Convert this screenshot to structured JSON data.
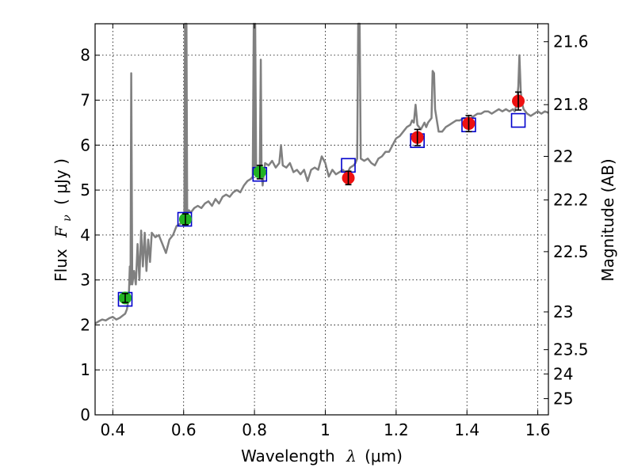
{
  "chart_data": {
    "type": "scatter",
    "xlabel": {
      "text": "Wavelength",
      "symbol": "λ",
      "unit": "(μm)"
    },
    "ylabel": {
      "text": "Flux",
      "symbol": "F",
      "subscript": "ν",
      "unit": "( μJy )"
    },
    "y2label": "Magnitude (AB)",
    "xlim": [
      0.35,
      1.63
    ],
    "ylim": [
      0,
      8.7
    ],
    "grid": true,
    "x_ticks": [
      0.4,
      0.6,
      0.8,
      1.0,
      1.2,
      1.4,
      1.6
    ],
    "x_tick_labels": [
      "0.4",
      "0.6",
      "0.8",
      "1",
      "1.2",
      "1.4",
      "1.6"
    ],
    "y_ticks": [
      0,
      1,
      2,
      3,
      4,
      5,
      6,
      7,
      8
    ],
    "y_tick_labels": [
      "0",
      "1",
      "2",
      "3",
      "4",
      "5",
      "6",
      "7",
      "8"
    ],
    "y2_ticks": [
      {
        "label": "21.6",
        "flux": 8.3
      },
      {
        "label": "21.8",
        "flux": 6.9
      },
      {
        "label": "22",
        "flux": 5.75
      },
      {
        "label": "22.2",
        "flux": 4.78
      },
      {
        "label": "22.5",
        "flux": 3.63
      },
      {
        "label": "23",
        "flux": 2.29
      },
      {
        "label": "23.5",
        "flux": 1.45
      },
      {
        "label": "24",
        "flux": 0.91
      },
      {
        "label": "25",
        "flux": 0.36
      }
    ],
    "colors": {
      "spectrum": "#808080",
      "green": "#22b222",
      "red": "#ee1111",
      "model": "#0000cc"
    },
    "spectrum": [
      [
        0.35,
        2.03
      ],
      [
        0.36,
        2.08
      ],
      [
        0.37,
        2.12
      ],
      [
        0.38,
        2.1
      ],
      [
        0.39,
        2.15
      ],
      [
        0.4,
        2.18
      ],
      [
        0.41,
        2.12
      ],
      [
        0.42,
        2.16
      ],
      [
        0.43,
        2.22
      ],
      [
        0.435,
        2.25
      ],
      [
        0.44,
        2.35
      ],
      [
        0.445,
        2.6
      ],
      [
        0.448,
        3.3
      ],
      [
        0.45,
        2.9
      ],
      [
        0.452,
        7.6
      ],
      [
        0.455,
        2.9
      ],
      [
        0.46,
        3.2
      ],
      [
        0.465,
        2.9
      ],
      [
        0.47,
        3.8
      ],
      [
        0.475,
        3.0
      ],
      [
        0.48,
        4.1
      ],
      [
        0.485,
        3.3
      ],
      [
        0.49,
        4.05
      ],
      [
        0.495,
        3.2
      ],
      [
        0.5,
        3.9
      ],
      [
        0.505,
        3.4
      ],
      [
        0.51,
        4.05
      ],
      [
        0.52,
        3.95
      ],
      [
        0.53,
        4.0
      ],
      [
        0.54,
        3.8
      ],
      [
        0.55,
        3.6
      ],
      [
        0.56,
        3.9
      ],
      [
        0.57,
        4.0
      ],
      [
        0.58,
        4.2
      ],
      [
        0.59,
        4.25
      ],
      [
        0.6,
        4.3
      ],
      [
        0.602,
        4.4
      ],
      [
        0.604,
        8.7
      ],
      [
        0.606,
        4.5
      ],
      [
        0.608,
        8.7
      ],
      [
        0.61,
        4.5
      ],
      [
        0.615,
        4.55
      ],
      [
        0.62,
        4.5
      ],
      [
        0.63,
        4.6
      ],
      [
        0.64,
        4.65
      ],
      [
        0.65,
        4.6
      ],
      [
        0.66,
        4.7
      ],
      [
        0.67,
        4.75
      ],
      [
        0.68,
        4.65
      ],
      [
        0.69,
        4.8
      ],
      [
        0.7,
        4.7
      ],
      [
        0.71,
        4.85
      ],
      [
        0.72,
        4.9
      ],
      [
        0.73,
        4.85
      ],
      [
        0.74,
        4.95
      ],
      [
        0.75,
        5.0
      ],
      [
        0.76,
        4.95
      ],
      [
        0.77,
        5.1
      ],
      [
        0.78,
        5.2
      ],
      [
        0.79,
        5.25
      ],
      [
        0.795,
        5.3
      ],
      [
        0.798,
        8.7
      ],
      [
        0.8,
        5.35
      ],
      [
        0.802,
        8.7
      ],
      [
        0.805,
        5.3
      ],
      [
        0.81,
        5.35
      ],
      [
        0.815,
        5.45
      ],
      [
        0.818,
        7.9
      ],
      [
        0.82,
        5.5
      ],
      [
        0.823,
        5.1
      ],
      [
        0.83,
        5.6
      ],
      [
        0.84,
        5.55
      ],
      [
        0.85,
        5.65
      ],
      [
        0.86,
        5.5
      ],
      [
        0.87,
        5.6
      ],
      [
        0.875,
        6.0
      ],
      [
        0.88,
        5.55
      ],
      [
        0.89,
        5.5
      ],
      [
        0.9,
        5.6
      ],
      [
        0.91,
        5.4
      ],
      [
        0.92,
        5.45
      ],
      [
        0.93,
        5.35
      ],
      [
        0.94,
        5.45
      ],
      [
        0.95,
        5.2
      ],
      [
        0.96,
        5.45
      ],
      [
        0.97,
        5.5
      ],
      [
        0.98,
        5.45
      ],
      [
        0.99,
        5.75
      ],
      [
        1.0,
        5.6
      ],
      [
        1.01,
        5.3
      ],
      [
        1.02,
        5.45
      ],
      [
        1.03,
        5.35
      ],
      [
        1.04,
        5.4
      ],
      [
        1.05,
        5.45
      ],
      [
        1.06,
        5.35
      ],
      [
        1.07,
        5.5
      ],
      [
        1.08,
        5.55
      ],
      [
        1.085,
        5.6
      ],
      [
        1.09,
        5.7
      ],
      [
        1.093,
        8.7
      ],
      [
        1.097,
        8.7
      ],
      [
        1.1,
        5.7
      ],
      [
        1.11,
        5.65
      ],
      [
        1.12,
        5.7
      ],
      [
        1.13,
        5.6
      ],
      [
        1.14,
        5.55
      ],
      [
        1.15,
        5.7
      ],
      [
        1.16,
        5.75
      ],
      [
        1.17,
        5.85
      ],
      [
        1.18,
        5.85
      ],
      [
        1.19,
        6.0
      ],
      [
        1.2,
        6.15
      ],
      [
        1.21,
        6.2
      ],
      [
        1.22,
        6.3
      ],
      [
        1.23,
        6.4
      ],
      [
        1.24,
        6.45
      ],
      [
        1.245,
        6.55
      ],
      [
        1.25,
        6.5
      ],
      [
        1.255,
        6.9
      ],
      [
        1.26,
        6.45
      ],
      [
        1.27,
        6.35
      ],
      [
        1.28,
        6.5
      ],
      [
        1.285,
        6.4
      ],
      [
        1.29,
        6.5
      ],
      [
        1.3,
        6.6
      ],
      [
        1.303,
        7.65
      ],
      [
        1.307,
        7.6
      ],
      [
        1.31,
        6.8
      ],
      [
        1.32,
        6.3
      ],
      [
        1.33,
        6.3
      ],
      [
        1.34,
        6.4
      ],
      [
        1.35,
        6.45
      ],
      [
        1.36,
        6.5
      ],
      [
        1.37,
        6.55
      ],
      [
        1.38,
        6.55
      ],
      [
        1.39,
        6.6
      ],
      [
        1.4,
        6.6
      ],
      [
        1.41,
        6.6
      ],
      [
        1.42,
        6.65
      ],
      [
        1.43,
        6.7
      ],
      [
        1.44,
        6.7
      ],
      [
        1.45,
        6.75
      ],
      [
        1.46,
        6.75
      ],
      [
        1.47,
        6.7
      ],
      [
        1.48,
        6.75
      ],
      [
        1.49,
        6.8
      ],
      [
        1.5,
        6.75
      ],
      [
        1.51,
        6.8
      ],
      [
        1.52,
        6.75
      ],
      [
        1.53,
        6.8
      ],
      [
        1.535,
        6.75
      ],
      [
        1.54,
        6.9
      ],
      [
        1.545,
        7.3
      ],
      [
        1.548,
        8.0
      ],
      [
        1.552,
        7.2
      ],
      [
        1.555,
        6.95
      ],
      [
        1.56,
        6.8
      ],
      [
        1.57,
        6.7
      ],
      [
        1.58,
        6.65
      ],
      [
        1.59,
        6.7
      ],
      [
        1.6,
        6.75
      ],
      [
        1.61,
        6.7
      ],
      [
        1.62,
        6.75
      ],
      [
        1.63,
        6.72
      ]
    ],
    "model_points": [
      {
        "x": 0.435,
        "y": 2.57
      },
      {
        "x": 0.603,
        "y": 4.35
      },
      {
        "x": 0.815,
        "y": 5.35
      },
      {
        "x": 1.065,
        "y": 5.55
      },
      {
        "x": 1.26,
        "y": 6.1
      },
      {
        "x": 1.405,
        "y": 6.45
      },
      {
        "x": 1.545,
        "y": 6.55
      }
    ],
    "observed_points": [
      {
        "x": 0.435,
        "y": 2.6,
        "yerr": 0.1,
        "color": "green"
      },
      {
        "x": 0.605,
        "y": 4.35,
        "yerr": 0.12,
        "color": "green"
      },
      {
        "x": 0.815,
        "y": 5.4,
        "yerr": 0.15,
        "color": "green"
      },
      {
        "x": 1.065,
        "y": 5.27,
        "yerr": 0.15,
        "color": "red"
      },
      {
        "x": 1.26,
        "y": 6.17,
        "yerr": 0.18,
        "color": "red"
      },
      {
        "x": 1.405,
        "y": 6.48,
        "yerr": 0.18,
        "color": "red"
      },
      {
        "x": 1.545,
        "y": 6.98,
        "yerr": 0.2,
        "color": "red"
      }
    ]
  }
}
